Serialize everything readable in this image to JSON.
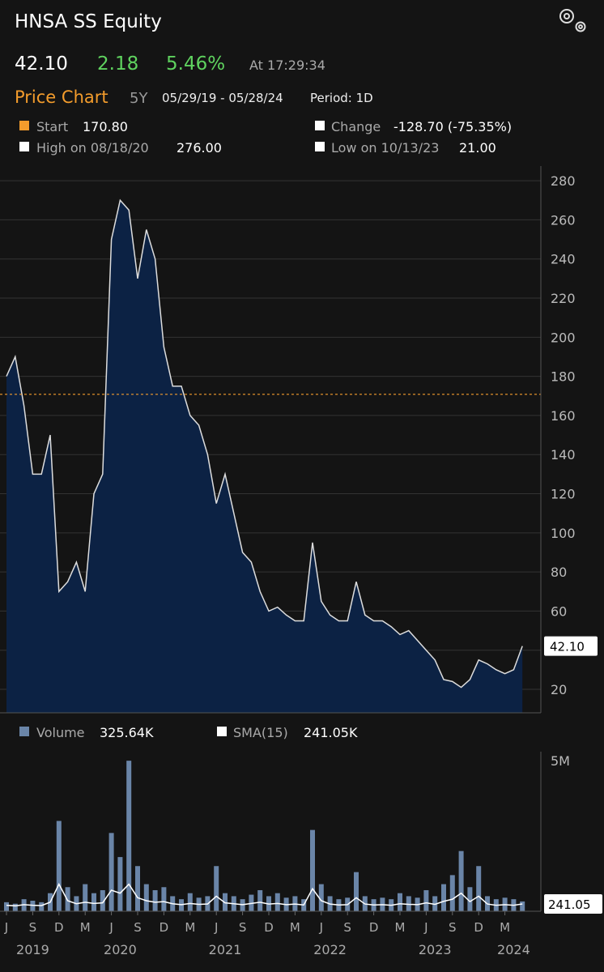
{
  "header": {
    "title": "HNSA SS Equity",
    "price": "42.10",
    "change": "2.18",
    "change_pct": "5.46%",
    "time": "At 17:29:34"
  },
  "chart_header": {
    "title": "Price Chart",
    "range": "5Y",
    "dates": "05/29/19 - 05/28/24",
    "period": "Period: 1D"
  },
  "stats": [
    {
      "label": "Start",
      "value": "170.80"
    },
    {
      "label": "Change",
      "value": "-128.70 (-75.35%)"
    },
    {
      "label": "High on 08/18/20",
      "value": "276.00"
    },
    {
      "label": "Low on 10/13/23",
      "value": "21.00"
    }
  ],
  "x_years": [
    {
      "value": "2019-09",
      "label": "2019"
    },
    {
      "value": "2020-07",
      "label": "2020"
    },
    {
      "value": "2021-07",
      "label": "2021"
    },
    {
      "value": "2022-07",
      "label": "2022"
    },
    {
      "value": "2023-07",
      "label": "2023"
    },
    {
      "value": "2024-04",
      "label": "2024"
    }
  ],
  "chart_data": [
    {
      "type": "area",
      "color": "#dddddd",
      "fill": "#0c2244",
      "x": [
        "2019-06",
        "2019-07",
        "2019-08",
        "2019-09",
        "2019-10",
        "2019-11",
        "2019-12",
        "2020-01",
        "2020-02",
        "2020-03",
        "2020-04",
        "2020-05",
        "2020-06",
        "2020-07",
        "2020-08",
        "2020-09",
        "2020-10",
        "2020-11",
        "2020-12",
        "2021-01",
        "2021-02",
        "2021-03",
        "2021-04",
        "2021-05",
        "2021-06",
        "2021-07",
        "2021-08",
        "2021-09",
        "2021-10",
        "2021-11",
        "2021-12",
        "2022-01",
        "2022-02",
        "2022-03",
        "2022-04",
        "2022-05",
        "2022-06",
        "2022-07",
        "2022-08",
        "2022-09",
        "2022-10",
        "2022-11",
        "2022-12",
        "2023-01",
        "2023-02",
        "2023-03",
        "2023-04",
        "2023-05",
        "2023-06",
        "2023-07",
        "2023-08",
        "2023-09",
        "2023-10",
        "2023-11",
        "2023-12",
        "2024-01",
        "2024-02",
        "2024-03",
        "2024-04",
        "2024-05"
      ],
      "values": [
        180,
        190,
        165,
        130,
        130,
        150,
        70,
        75,
        85,
        70,
        120,
        130,
        250,
        270,
        265,
        230,
        255,
        240,
        195,
        175,
        175,
        160,
        155,
        140,
        115,
        130,
        110,
        90,
        85,
        70,
        60,
        62,
        58,
        55,
        55,
        95,
        65,
        58,
        55,
        55,
        75,
        58,
        55,
        55,
        52,
        48,
        50,
        45,
        40,
        35,
        25,
        24,
        21,
        25,
        35,
        33,
        30,
        28,
        30,
        42.1
      ],
      "last_label": "42.10",
      "ref_line": 170.8,
      "ref_color": "#f39c2c",
      "ylim": [
        8,
        287.5
      ],
      "yticks": [
        20,
        40,
        60,
        80,
        100,
        120,
        140,
        160,
        180,
        200,
        220,
        240,
        260,
        280
      ],
      "grid": true
    },
    {
      "type": "bar",
      "x": [
        "2019-06",
        "2019-07",
        "2019-08",
        "2019-09",
        "2019-10",
        "2019-11",
        "2019-12",
        "2020-01",
        "2020-02",
        "2020-03",
        "2020-04",
        "2020-05",
        "2020-06",
        "2020-07",
        "2020-08",
        "2020-09",
        "2020-10",
        "2020-11",
        "2020-12",
        "2021-01",
        "2021-02",
        "2021-03",
        "2021-04",
        "2021-05",
        "2021-06",
        "2021-07",
        "2021-08",
        "2021-09",
        "2021-10",
        "2021-11",
        "2021-12",
        "2022-01",
        "2022-02",
        "2022-03",
        "2022-04",
        "2022-05",
        "2022-06",
        "2022-07",
        "2022-08",
        "2022-09",
        "2022-10",
        "2022-11",
        "2022-12",
        "2023-01",
        "2023-02",
        "2023-03",
        "2023-04",
        "2023-05",
        "2023-06",
        "2023-07",
        "2023-08",
        "2023-09",
        "2023-10",
        "2023-11",
        "2023-12",
        "2024-01",
        "2024-02",
        "2024-03",
        "2024-04",
        "2024-05"
      ],
      "series": [
        {
          "name": "Volume",
          "color": "#6a85a8",
          "legend_value": "325.64K",
          "values": [
            300000,
            250000,
            400000,
            350000,
            300000,
            600000,
            3000000,
            800000,
            500000,
            900000,
            600000,
            700000,
            2600000,
            1800000,
            5000000,
            1500000,
            900000,
            700000,
            800000,
            500000,
            400000,
            600000,
            450000,
            500000,
            1500000,
            600000,
            500000,
            400000,
            550000,
            700000,
            500000,
            600000,
            450000,
            500000,
            400000,
            2700000,
            900000,
            500000,
            400000,
            450000,
            1300000,
            500000,
            400000,
            450000,
            400000,
            600000,
            500000,
            450000,
            700000,
            500000,
            900000,
            1200000,
            2000000,
            800000,
            1500000,
            500000,
            400000,
            450000,
            400000,
            325640
          ]
        },
        {
          "name": "SMA(15)",
          "color": "#ffffff",
          "type": "line",
          "legend_value": "241.05K",
          "axis_label": "241.05",
          "values": [
            200000,
            180000,
            220000,
            200000,
            190000,
            300000,
            900000,
            350000,
            250000,
            300000,
            260000,
            280000,
            700000,
            600000,
            900000,
            450000,
            350000,
            300000,
            320000,
            250000,
            220000,
            260000,
            230000,
            240000,
            500000,
            280000,
            250000,
            220000,
            260000,
            300000,
            240000,
            260000,
            220000,
            240000,
            210000,
            750000,
            350000,
            240000,
            210000,
            220000,
            450000,
            240000,
            210000,
            220000,
            200000,
            250000,
            230000,
            220000,
            280000,
            230000,
            330000,
            400000,
            600000,
            320000,
            500000,
            240000,
            200000,
            220000,
            200000,
            241050
          ]
        }
      ],
      "ylim": [
        0,
        5300000
      ],
      "yticks": [
        {
          "value": 5000000,
          "label": "5M"
        }
      ],
      "xticks": [
        {
          "value": "2019-06",
          "label": "J"
        },
        {
          "value": "2019-09",
          "label": "S"
        },
        {
          "value": "2019-12",
          "label": "D"
        },
        {
          "value": "2020-03",
          "label": "M"
        },
        {
          "value": "2020-06",
          "label": "J"
        },
        {
          "value": "2020-09",
          "label": "S"
        },
        {
          "value": "2020-12",
          "label": "D"
        },
        {
          "value": "2021-03",
          "label": "M"
        },
        {
          "value": "2021-06",
          "label": "J"
        },
        {
          "value": "2021-09",
          "label": "S"
        },
        {
          "value": "2021-12",
          "label": "D"
        },
        {
          "value": "2022-03",
          "label": "M"
        },
        {
          "value": "2022-06",
          "label": "J"
        },
        {
          "value": "2022-09",
          "label": "S"
        },
        {
          "value": "2022-12",
          "label": "D"
        },
        {
          "value": "2023-03",
          "label": "M"
        },
        {
          "value": "2023-06",
          "label": "J"
        },
        {
          "value": "2023-09",
          "label": "S"
        },
        {
          "value": "2023-12",
          "label": "D"
        },
        {
          "value": "2024-03",
          "label": "M"
        }
      ]
    }
  ]
}
